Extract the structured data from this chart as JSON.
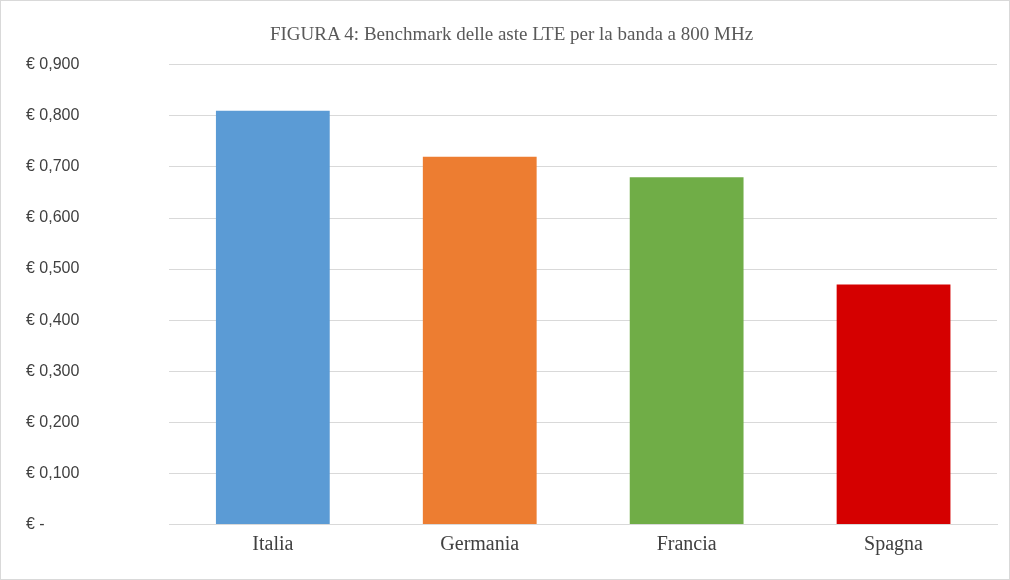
{
  "chart_data": {
    "type": "bar",
    "title": "FIGURA 4: Benchmark delle aste LTE per la banda a 800 MHz",
    "categories": [
      "Italia",
      "Germania",
      "Francia",
      "Spagna"
    ],
    "values": [
      0.81,
      0.72,
      0.68,
      0.47
    ],
    "colors": [
      "#5b9bd5",
      "#ed7d31",
      "#70ad47",
      "#d50000"
    ],
    "ylim": [
      0,
      0.9
    ],
    "yticks": [
      {
        "value": 0,
        "label": "€ -"
      },
      {
        "value": 0.1,
        "label": "€ 0,100"
      },
      {
        "value": 0.2,
        "label": "€ 0,200"
      },
      {
        "value": 0.3,
        "label": "€ 0,300"
      },
      {
        "value": 0.4,
        "label": "€ 0,400"
      },
      {
        "value": 0.5,
        "label": "€ 0,500"
      },
      {
        "value": 0.6,
        "label": "€ 0,600"
      },
      {
        "value": 0.7,
        "label": "€ 0,700"
      },
      {
        "value": 0.8,
        "label": "€ 0,800"
      },
      {
        "value": 0.9,
        "label": "€ 0,900"
      }
    ],
    "grid": "y",
    "legend": false
  }
}
